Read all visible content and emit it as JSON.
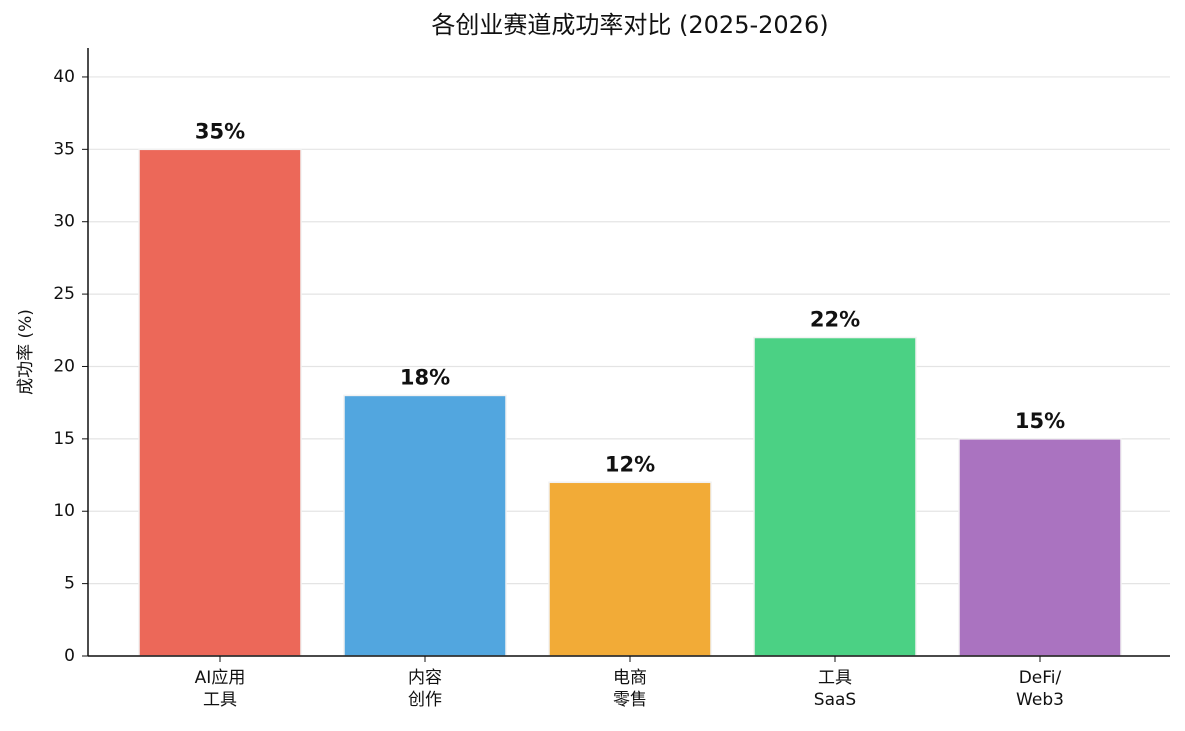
{
  "chart_data": {
    "type": "bar",
    "title": "各创业赛道成功率对比 (2025-2026)",
    "y_label": "成功率 (%)",
    "categories": [
      "AI应用\n工具",
      "内容\n创作",
      "电商\n零售",
      "工具\nSaaS",
      "DeFi/\nWeb3"
    ],
    "values": [
      35,
      18,
      12,
      22,
      15
    ],
    "value_labels": [
      "35%",
      "18%",
      "12%",
      "22%",
      "15%"
    ],
    "colors": [
      "#ec6859",
      "#52a6df",
      "#f2ab37",
      "#4bd184",
      "#aa73c0"
    ],
    "ylim": [
      0,
      42
    ],
    "yticks": [
      0,
      5,
      10,
      15,
      20,
      25,
      30,
      35,
      40
    ],
    "grid": true
  }
}
